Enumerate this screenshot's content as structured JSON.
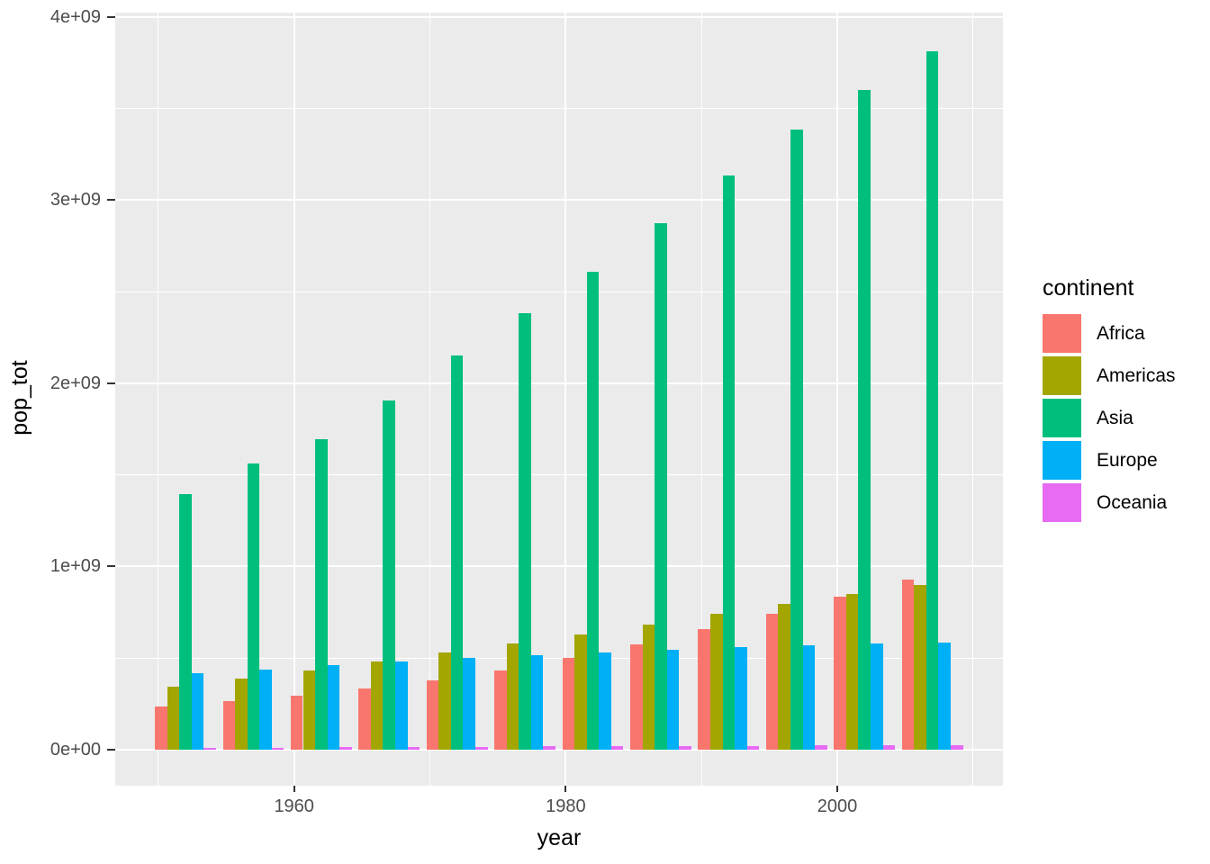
{
  "chart_data": {
    "type": "bar",
    "title": "",
    "xlabel": "year",
    "ylabel": "pop_tot",
    "legend_title": "continent",
    "legend_position": "right",
    "grid": true,
    "panel_style": "ggplot2-grey",
    "categories": [
      1952,
      1957,
      1962,
      1967,
      1972,
      1977,
      1982,
      1987,
      1992,
      1997,
      2002,
      2007
    ],
    "series": [
      {
        "name": "Africa",
        "color": "#F8766D",
        "values": [
          237640501,
          264837738,
          296516865,
          335289489,
          379879541,
          433061021,
          499348587,
          574834110,
          659081517,
          743832984,
          833723916,
          929539692
        ]
      },
      {
        "name": "Americas",
        "color": "#A3A500",
        "values": [
          345152446,
          386953916,
          433270254,
          480746623,
          529384210,
          578067699,
          630290920,
          682753971,
          739274104,
          796900410,
          849772762,
          898871184
        ]
      },
      {
        "name": "Asia",
        "color": "#00BF7D",
        "values": [
          1395357351,
          1562780599,
          1696357182,
          1905662900,
          2150972248,
          2384513556,
          2610135582,
          2871220762,
          3133292191,
          3383285500,
          3601802203,
          3811953827
        ]
      },
      {
        "name": "Europe",
        "color": "#00B0F6",
        "values": [
          418120846,
          437890351,
          460355155,
          481178958,
          500635059,
          517164531,
          531266901,
          543094160,
          558142797,
          568944148,
          578223869,
          586098529
        ]
      },
      {
        "name": "Oceania",
        "color": "#E76BF3",
        "values": [
          10686006,
          11941976,
          13283518,
          14600414,
          16106100,
          17239000,
          18394850,
          19574415,
          20919651,
          22241430,
          23454829,
          24450162
        ]
      }
    ],
    "x_ticks": [
      {
        "label": "1960",
        "value": 1960
      },
      {
        "label": "1980",
        "value": 1980
      },
      {
        "label": "2000",
        "value": 2000
      }
    ],
    "x_minor": [
      1950,
      1970,
      1990,
      2010
    ],
    "y_ticks": [
      {
        "label": "0e+00",
        "value": 0
      },
      {
        "label": "1e+09",
        "value": 1000000000
      },
      {
        "label": "2e+09",
        "value": 2000000000
      },
      {
        "label": "3e+09",
        "value": 3000000000
      },
      {
        "label": "4e+09",
        "value": 4000000000
      }
    ],
    "y_minor": [
      500000000,
      1500000000,
      2500000000,
      3500000000
    ],
    "ylim": [
      0,
      4000000000
    ],
    "colors": {
      "panel_bg": "#EBEBEB",
      "grid": "#FFFFFF",
      "tick_text": "#4D4D4D",
      "tick_mark": "#333333",
      "axis_title": "#000000",
      "legend_key_bg": "#F2F2F2"
    }
  }
}
